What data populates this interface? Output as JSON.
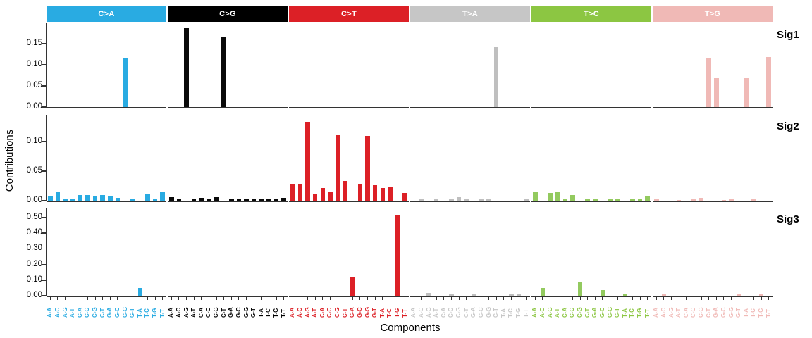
{
  "labels": {
    "y_axis_title": "Contributions",
    "x_axis_title": "Components",
    "panel_labels": [
      "Sig1",
      "Sig2",
      "Sig3"
    ]
  },
  "mutation_types": [
    {
      "label": "C>A",
      "band_color": "#29ABE2",
      "bar_color": "#29ABE2",
      "band_text_color": "#FFFFFF"
    },
    {
      "label": "C>G",
      "band_color": "#000000",
      "bar_color": "#0A0A0A",
      "band_text_color": "#FFFFFF"
    },
    {
      "label": "C>T",
      "band_color": "#DC2026",
      "bar_color": "#DC2026",
      "band_text_color": "#FFFFFF"
    },
    {
      "label": "T>A",
      "band_color": "#C6C6C6",
      "bar_color": "#BFBFBF",
      "band_text_color": "#FFFFFF"
    },
    {
      "label": "T>C",
      "band_color": "#8CC642",
      "bar_color": "#93CA5F",
      "band_text_color": "#FFFFFF"
    },
    {
      "label": "T>G",
      "band_color": "#F0B9B6",
      "bar_color": "#F0B9B6",
      "band_text_color": "#FFFFFF"
    }
  ],
  "components": [
    "A-A",
    "A-C",
    "A-G",
    "A-T",
    "C-A",
    "C-C",
    "C-G",
    "C-T",
    "G-A",
    "G-C",
    "G-G",
    "G-T",
    "T-A",
    "T-C",
    "T-G",
    "T-T"
  ],
  "chart_data": [
    {
      "type": "bar",
      "name": "Sig1",
      "ylim": [
        0,
        0.198
      ],
      "yticks": [
        "0.00",
        "0.05",
        "0.10",
        "0.15"
      ],
      "series": [
        {
          "mutation": "C>A",
          "values": [
            0,
            0,
            0,
            0,
            0,
            0,
            0,
            0,
            0,
            0,
            0.117,
            0,
            0,
            0,
            0,
            0
          ]
        },
        {
          "mutation": "C>G",
          "values": [
            0,
            0,
            0.187,
            0,
            0,
            0,
            0,
            0.164,
            0,
            0,
            0,
            0,
            0,
            0,
            0,
            0
          ]
        },
        {
          "mutation": "C>T",
          "values": [
            0,
            0,
            0,
            0,
            0,
            0,
            0,
            0,
            0,
            0,
            0,
            0,
            0,
            0,
            0,
            0
          ]
        },
        {
          "mutation": "T>A",
          "values": [
            0,
            0,
            0,
            0,
            0,
            0,
            0,
            0,
            0,
            0,
            0,
            0.141,
            0,
            0,
            0,
            0
          ]
        },
        {
          "mutation": "T>C",
          "values": [
            0,
            0,
            0,
            0,
            0,
            0,
            0,
            0,
            0,
            0,
            0,
            0,
            0,
            0,
            0,
            0
          ]
        },
        {
          "mutation": "T>G",
          "values": [
            0,
            0,
            0,
            0,
            0,
            0,
            0,
            0.117,
            0.069,
            0,
            0,
            0,
            0.069,
            0,
            0,
            0.118
          ]
        }
      ]
    },
    {
      "type": "bar",
      "name": "Sig2",
      "ylim": [
        0,
        0.1452
      ],
      "yticks": [
        "0.00",
        "0.05",
        "0.10"
      ],
      "series": [
        {
          "mutation": "C>A",
          "values": [
            0.007,
            0.015,
            0.002,
            0.004,
            0.009,
            0.009,
            0.007,
            0.009,
            0.008,
            0.005,
            0,
            0.004,
            0,
            0.011,
            0.003,
            0.014
          ]
        },
        {
          "mutation": "C>G",
          "values": [
            0.006,
            0.002,
            0,
            0.003,
            0.005,
            0.002,
            0.006,
            0,
            0.004,
            0.002,
            0.002,
            0.002,
            0.002,
            0.003,
            0.003,
            0.005
          ]
        },
        {
          "mutation": "C>T",
          "values": [
            0.028,
            0.028,
            0.133,
            0.012,
            0.021,
            0.016,
            0.111,
            0.033,
            0,
            0.027,
            0.11,
            0.026,
            0.021,
            0.023,
            0,
            0.013
          ]
        },
        {
          "mutation": "T>A",
          "values": [
            0,
            0.004,
            0,
            0.002,
            0,
            0.004,
            0.006,
            0.003,
            0,
            0.004,
            0.002,
            0,
            0,
            0,
            0,
            0.002
          ]
        },
        {
          "mutation": "T>C",
          "values": [
            0.014,
            0,
            0.013,
            0.015,
            0.002,
            0.009,
            0,
            0.004,
            0.002,
            0,
            0.004,
            0.004,
            0,
            0.003,
            0.004,
            0.008
          ]
        },
        {
          "mutation": "T>G",
          "values": [
            0.002,
            0,
            0,
            0.001,
            0,
            0.004,
            0.005,
            0,
            0,
            0.001,
            0.003,
            0,
            0,
            0.003,
            0,
            0
          ]
        }
      ]
    },
    {
      "type": "bar",
      "name": "Sig3",
      "ylim": [
        0,
        0.563
      ],
      "yticks": [
        "0.00",
        "0.10",
        "0.20",
        "0.30",
        "0.40",
        "0.50"
      ],
      "series": [
        {
          "mutation": "C>A",
          "values": [
            0,
            0,
            0,
            0,
            0,
            0,
            0,
            0,
            0,
            0,
            0,
            0,
            0.048,
            0,
            0,
            0
          ]
        },
        {
          "mutation": "C>G",
          "values": [
            0,
            0,
            0,
            0,
            0,
            0,
            0,
            0,
            0,
            0,
            0,
            0,
            0,
            0,
            0,
            0
          ]
        },
        {
          "mutation": "C>T",
          "values": [
            0,
            0,
            0,
            0,
            0,
            0,
            0,
            0,
            0.123,
            0,
            0,
            0,
            0,
            0,
            0.513,
            0
          ]
        },
        {
          "mutation": "T>A",
          "values": [
            0,
            0,
            0.019,
            0,
            0,
            0.008,
            0,
            0,
            0.008,
            0,
            0,
            0,
            0,
            0.015,
            0.015,
            0
          ]
        },
        {
          "mutation": "T>C",
          "values": [
            0,
            0.048,
            0,
            0,
            0,
            0,
            0.09,
            0,
            0,
            0.037,
            0,
            0,
            0.007,
            0,
            0,
            0
          ]
        },
        {
          "mutation": "T>G",
          "values": [
            0,
            0.007,
            0,
            0,
            0,
            0,
            0,
            0,
            0,
            0,
            0,
            0.007,
            0,
            0,
            0.007,
            0
          ]
        }
      ]
    }
  ]
}
